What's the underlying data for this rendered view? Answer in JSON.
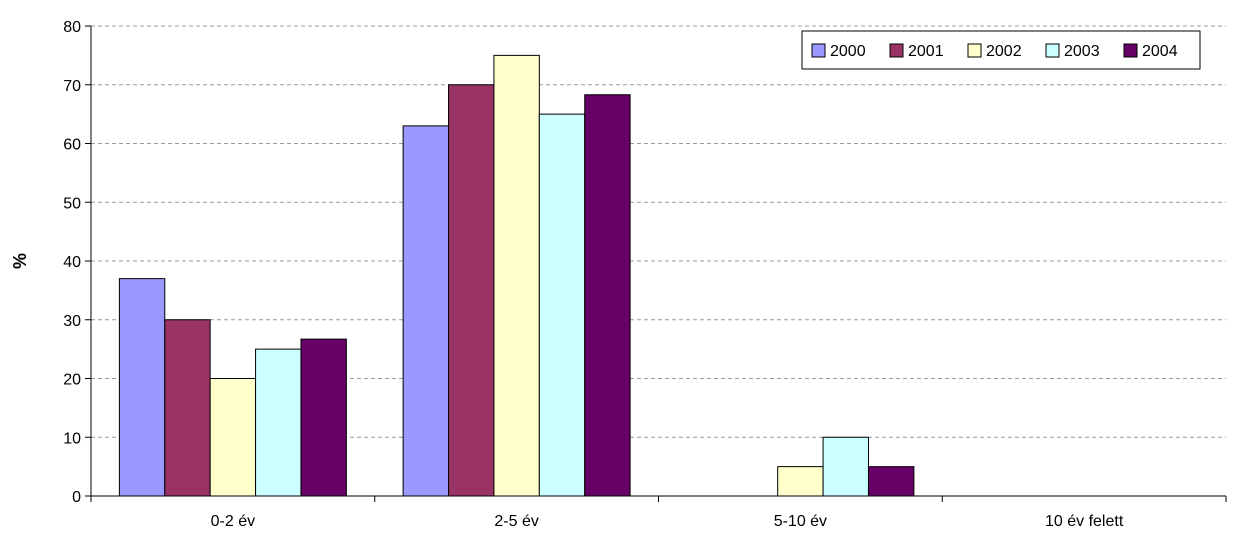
{
  "chart_data": {
    "type": "bar",
    "title": "",
    "xlabel": "",
    "ylabel": "%",
    "ylim": [
      0,
      80
    ],
    "yticks": [
      0,
      10,
      20,
      30,
      40,
      50,
      60,
      70,
      80
    ],
    "grid": true,
    "legend_position": "top-right",
    "categories": [
      "0-2 év",
      "2-5 év",
      "5-10 év",
      "10 év felett"
    ],
    "series": [
      {
        "name": "2000",
        "color": "#9999FF",
        "values": [
          37,
          63,
          0,
          0
        ]
      },
      {
        "name": "2001",
        "color": "#993366",
        "values": [
          30,
          70,
          0,
          0
        ]
      },
      {
        "name": "2002",
        "color": "#FFFFCC",
        "values": [
          20,
          75,
          5,
          0
        ]
      },
      {
        "name": "2003",
        "color": "#CCFFFF",
        "values": [
          25,
          65,
          10,
          0
        ]
      },
      {
        "name": "2004",
        "color": "#660066",
        "values": [
          26.7,
          68.3,
          5,
          0
        ]
      }
    ]
  }
}
